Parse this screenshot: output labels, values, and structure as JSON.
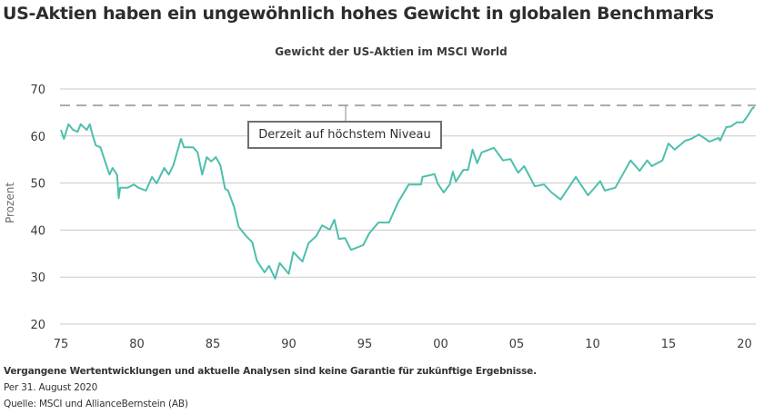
{
  "title": "US-Aktien haben ein ungewöhnlich hohes Gewicht in globalen Benchmarks",
  "footer": {
    "disclaimer": "Vergangene Wertentwicklungen und aktuelle Analysen sind keine Garantie für zukünftige Ergebnisse.",
    "date": "Per 31. August 2020",
    "source": "Quelle: MSCI und AllianceBernstein (AB)"
  },
  "annotation": {
    "label": "Derzeit auf höchstem Niveau",
    "level": 66.5
  },
  "colors": {
    "line": "#4dbfad",
    "grid": "#c8c8c8",
    "dashed": "#a9a9a9",
    "text": "#333333"
  },
  "chart_data": {
    "type": "line",
    "title": "Gewicht der US-Aktien im MSCI World",
    "xlabel": "",
    "ylabel": "Prozent",
    "ylim": [
      20,
      70
    ],
    "xlim": [
      1975,
      2020.7
    ],
    "yticks": [
      20,
      30,
      40,
      50,
      60,
      70
    ],
    "xticks": [
      1975,
      1980,
      1985,
      1990,
      1995,
      2000,
      2005,
      2010,
      2015,
      2020
    ],
    "xtick_labels": [
      "75",
      "80",
      "85",
      "90",
      "95",
      "00",
      "05",
      "10",
      "15",
      "20"
    ],
    "grid": "horizontal",
    "reference_line": {
      "y": 66.5,
      "style": "dashed",
      "label": "Derzeit auf höchstem Niveau"
    },
    "series": [
      {
        "name": "Gewicht der US-Aktien im MSCI World",
        "x": [
          1975.0,
          1975.2,
          1975.5,
          1975.8,
          1976.1,
          1976.3,
          1976.7,
          1976.9,
          1977.1,
          1977.3,
          1977.6,
          1977.9,
          1978.2,
          1978.4,
          1978.7,
          1978.8,
          1978.9,
          1979.4,
          1979.8,
          1980.1,
          1980.6,
          1981.0,
          1981.3,
          1981.8,
          1982.1,
          1982.4,
          1982.7,
          1982.9,
          1983.1,
          1983.7,
          1984.0,
          1984.3,
          1984.6,
          1984.9,
          1985.2,
          1985.5,
          1985.8,
          1986.0,
          1986.4,
          1986.7,
          1987.2,
          1987.6,
          1987.9,
          1988.4,
          1988.7,
          1989.1,
          1989.4,
          1990.0,
          1990.3,
          1990.9,
          1991.3,
          1991.8,
          1992.2,
          1992.7,
          1993.0,
          1993.3,
          1993.7,
          1994.1,
          1994.9,
          1995.3,
          1995.9,
          1996.6,
          1997.2,
          1997.9,
          1998.7,
          1998.8,
          1999.6,
          1999.8,
          2000.2,
          2000.6,
          2000.8,
          2001.0,
          2001.5,
          2001.8,
          2002.1,
          2002.4,
          2002.7,
          2003.5,
          2004.1,
          2004.6,
          2005.1,
          2005.5,
          2006.2,
          2006.8,
          2007.3,
          2007.9,
          2008.9,
          2009.7,
          2010.5,
          2010.8,
          2011.5,
          2012.5,
          2013.1,
          2013.6,
          2013.9,
          2014.6,
          2015.0,
          2015.4,
          2016.1,
          2016.5,
          2017.0,
          2017.7,
          2018.3,
          2018.4,
          2018.8,
          2019.1,
          2019.5,
          2019.9,
          2020.2,
          2020.5,
          2020.65
        ],
        "values": [
          61.3,
          59.4,
          62.5,
          61.3,
          60.9,
          62.5,
          61.3,
          62.5,
          60.0,
          58.0,
          57.6,
          54.7,
          51.8,
          53.2,
          51.7,
          46.8,
          49.0,
          49.0,
          49.7,
          49.0,
          48.4,
          51.3,
          49.9,
          53.2,
          51.8,
          53.8,
          57.1,
          59.4,
          57.6,
          57.6,
          56.5,
          51.8,
          55.5,
          54.6,
          55.5,
          53.8,
          48.8,
          48.4,
          44.9,
          40.7,
          38.7,
          37.4,
          33.5,
          31.0,
          32.4,
          29.7,
          33.0,
          30.7,
          35.3,
          33.3,
          37.2,
          38.7,
          41.0,
          40.1,
          42.2,
          38.1,
          38.3,
          35.8,
          36.8,
          39.3,
          41.6,
          41.6,
          45.9,
          49.7,
          49.7,
          51.3,
          51.9,
          49.9,
          48.0,
          49.7,
          52.4,
          50.3,
          52.8,
          52.8,
          57.1,
          54.2,
          56.5,
          57.5,
          54.8,
          55.1,
          52.2,
          53.6,
          49.3,
          49.7,
          48.0,
          46.5,
          51.3,
          47.4,
          50.4,
          48.4,
          49.0,
          54.8,
          52.6,
          54.8,
          53.6,
          54.8,
          58.4,
          57.1,
          59.0,
          59.4,
          60.3,
          58.8,
          59.6,
          59.0,
          61.9,
          62.0,
          62.9,
          62.9,
          64.2,
          65.8,
          66.2
        ]
      }
    ]
  }
}
